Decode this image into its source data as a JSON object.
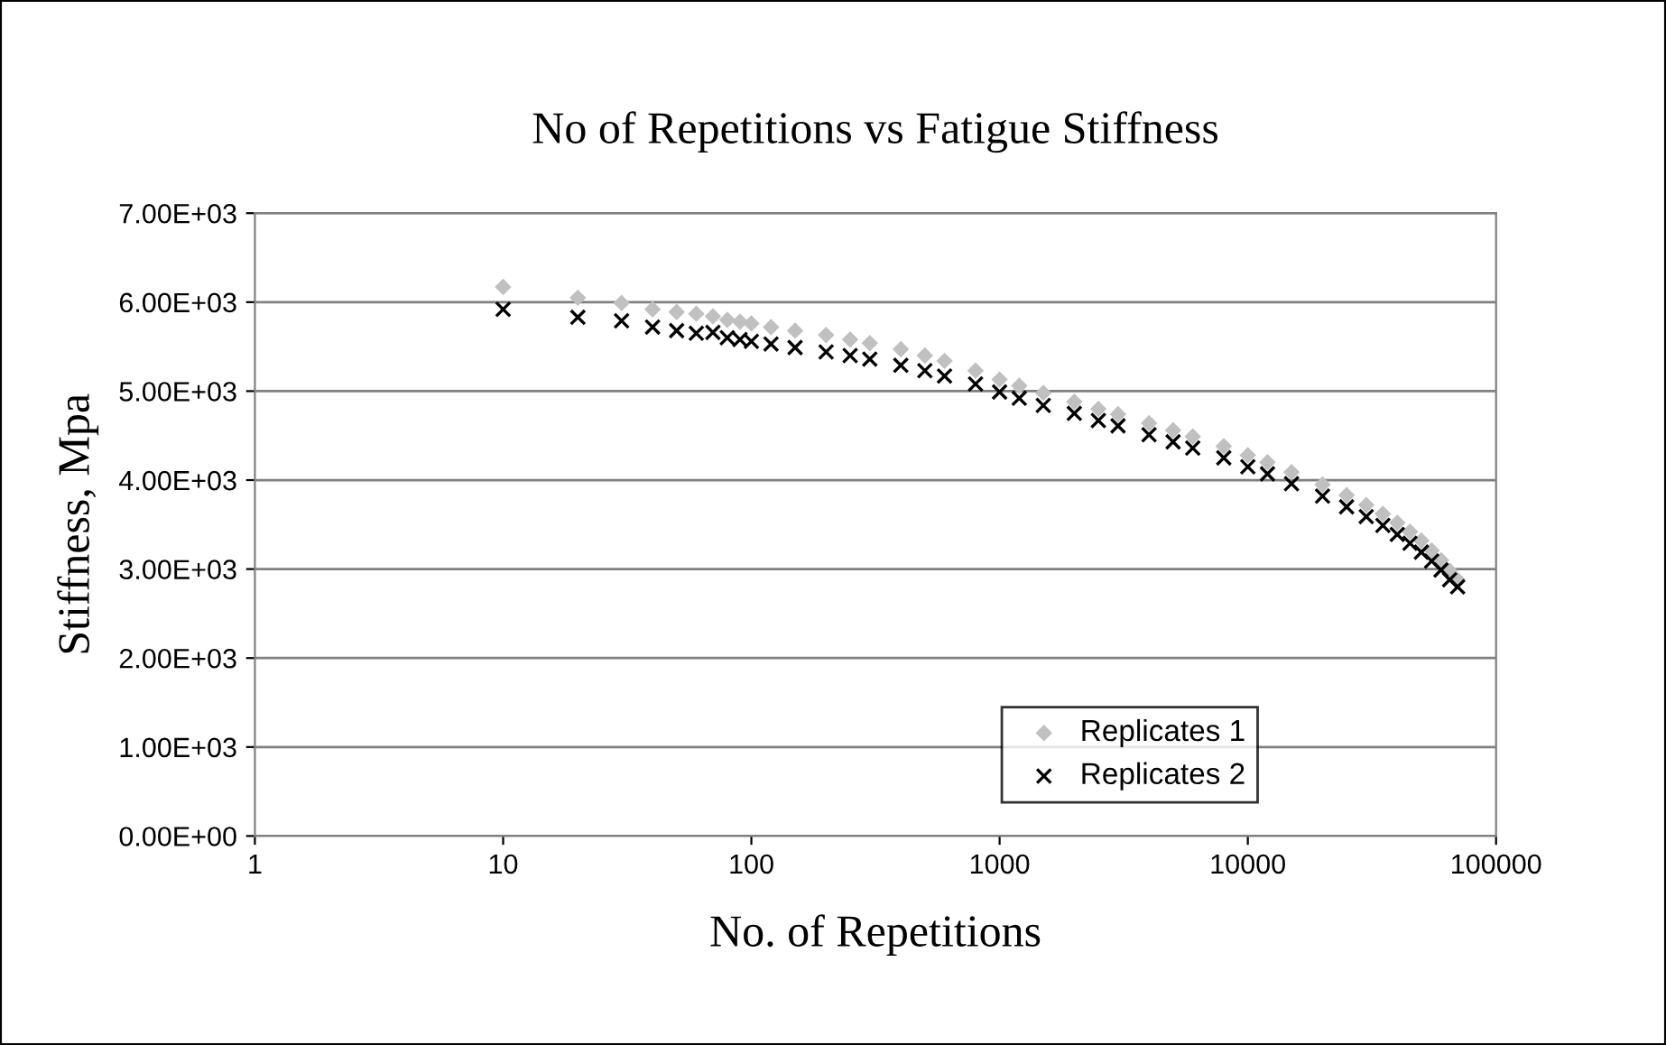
{
  "chart_data": {
    "type": "scatter",
    "title": "No of Repetitions vs Fatigue Stiffness",
    "xlabel": "No. of Repetitions",
    "ylabel": "Stiffness, Mpa",
    "log": "x",
    "grid": "y",
    "legend": "bottom right",
    "xlim": [
      1,
      100000
    ],
    "xticks": [
      1,
      10,
      100,
      1000,
      10000,
      100000
    ],
    "ylim": [
      0,
      7000
    ],
    "yticks": [
      {
        "value": 0,
        "label": "0.00E+00"
      },
      {
        "value": 1000,
        "label": "1.00E+03"
      },
      {
        "value": 2000,
        "label": "2.00E+03"
      },
      {
        "value": 3000,
        "label": "3.00E+03"
      },
      {
        "value": 4000,
        "label": "4.00E+03"
      },
      {
        "value": 5000,
        "label": "5.00E+03"
      },
      {
        "value": 6000,
        "label": "6.00E+03"
      },
      {
        "value": 7000,
        "label": "7.00E+03"
      }
    ],
    "x": [
      10,
      20,
      30,
      40,
      50,
      60,
      70,
      80,
      90,
      100,
      120,
      150,
      200,
      250,
      300,
      400,
      500,
      600,
      800,
      1000,
      1200,
      1500,
      2000,
      2500,
      3000,
      4000,
      5000,
      6000,
      8000,
      10000,
      12000,
      15000,
      20000,
      25000,
      30000,
      35000,
      40000,
      45000,
      50000,
      55000,
      60000,
      65000,
      70000
    ],
    "series": [
      {
        "name": "Replicates 1",
        "color": "#c0c0c0",
        "marker": "diamond",
        "values": [
          6170,
          6050,
          5990,
          5920,
          5890,
          5870,
          5840,
          5800,
          5780,
          5760,
          5720,
          5680,
          5630,
          5580,
          5540,
          5470,
          5400,
          5340,
          5230,
          5130,
          5060,
          4980,
          4880,
          4800,
          4740,
          4640,
          4560,
          4490,
          4380,
          4280,
          4200,
          4090,
          3950,
          3830,
          3720,
          3620,
          3520,
          3420,
          3320,
          3210,
          3100,
          2980,
          2880
        ]
      },
      {
        "name": "Replicates 2",
        "color": "#000000",
        "marker": "cross",
        "values": [
          5920,
          5830,
          5790,
          5720,
          5680,
          5650,
          5660,
          5600,
          5580,
          5560,
          5530,
          5490,
          5440,
          5400,
          5360,
          5290,
          5230,
          5170,
          5080,
          4990,
          4920,
          4840,
          4750,
          4670,
          4610,
          4510,
          4430,
          4360,
          4250,
          4150,
          4070,
          3960,
          3820,
          3700,
          3590,
          3490,
          3390,
          3290,
          3190,
          3090,
          2990,
          2880,
          2800
        ]
      }
    ]
  }
}
